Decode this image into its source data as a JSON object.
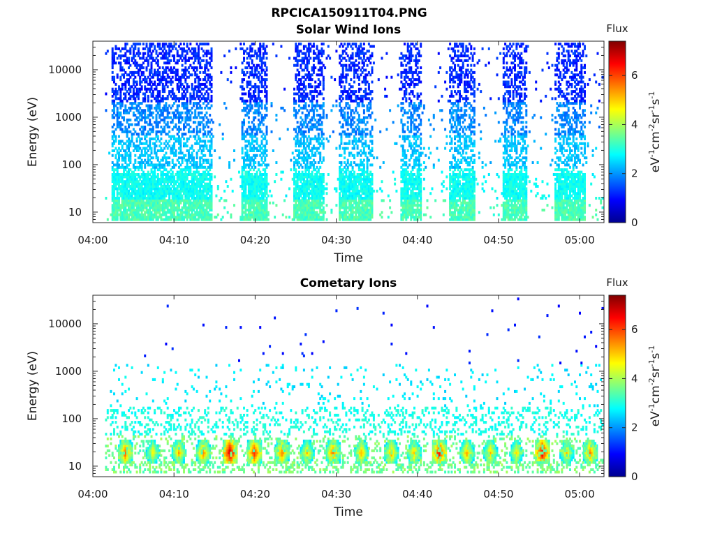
{
  "figure_title": "RPCICA150911T04.PNG",
  "colormap": [
    "#00008f",
    "#0000ff",
    "#0080ff",
    "#00ffff",
    "#80ff80",
    "#ffff00",
    "#ff8000",
    "#ff0000",
    "#800000"
  ],
  "chart_data": [
    {
      "type": "heatmap",
      "title": "Solar Wind Ions",
      "xlabel": "Time",
      "ylabel": "Energy (eV)",
      "x_ticks": [
        "04:00",
        "04:10",
        "04:20",
        "04:30",
        "04:40",
        "04:50",
        "05:00"
      ],
      "x_range_minutes": [
        0,
        63
      ],
      "y_scale": "log",
      "y_ticks": [
        "10",
        "100",
        "1000",
        "10000"
      ],
      "y_range": [
        6,
        40000
      ],
      "colorbar": {
        "label": "Flux",
        "unit": "eV-1cm-2sr-1s-1",
        "ticks": [
          "0",
          "2",
          "4",
          "6"
        ],
        "range": [
          0,
          7.4
        ]
      },
      "bursts_minutes": [
        [
          2.3,
          14.6
        ],
        [
          18.2,
          21.3
        ],
        [
          24.5,
          28.3
        ],
        [
          30.2,
          34.4
        ],
        [
          37.8,
          40.5
        ],
        [
          43.8,
          47.0
        ],
        [
          50.4,
          53.5
        ],
        [
          56.8,
          60.7
        ]
      ],
      "profile": "solar-wind"
    },
    {
      "type": "heatmap",
      "title": "Cometary Ions",
      "xlabel": "Time",
      "ylabel": "Energy (eV)",
      "x_ticks": [
        "04:00",
        "04:10",
        "04:20",
        "04:30",
        "04:40",
        "04:50",
        "05:00"
      ],
      "x_range_minutes": [
        0,
        63
      ],
      "y_scale": "log",
      "y_ticks": [
        "10",
        "100",
        "1000",
        "10000"
      ],
      "y_range": [
        6,
        40000
      ],
      "colorbar": {
        "label": "Flux",
        "unit": "eV-1cm-2sr-1s-1",
        "ticks": [
          "0",
          "2",
          "4",
          "6"
        ],
        "range": [
          0,
          7.4
        ]
      },
      "hotspots_minutes": [
        3.9,
        7.3,
        10.5,
        13.5,
        16.8,
        19.8,
        23.2,
        26.3,
        29.5,
        33.0,
        36.7,
        39.5,
        42.6,
        46.0,
        48.9,
        52.1,
        55.3,
        58.3,
        61.2
      ],
      "hotspot_peaks": [
        5.8,
        4.8,
        5.2,
        5.5,
        6.8,
        6.2,
        5.6,
        5.0,
        5.7,
        5.2,
        5.3,
        5.1,
        6.4,
        5.3,
        5.1,
        4.9,
        6.6,
        5.0,
        5.6
      ],
      "profile": "cometary"
    }
  ]
}
